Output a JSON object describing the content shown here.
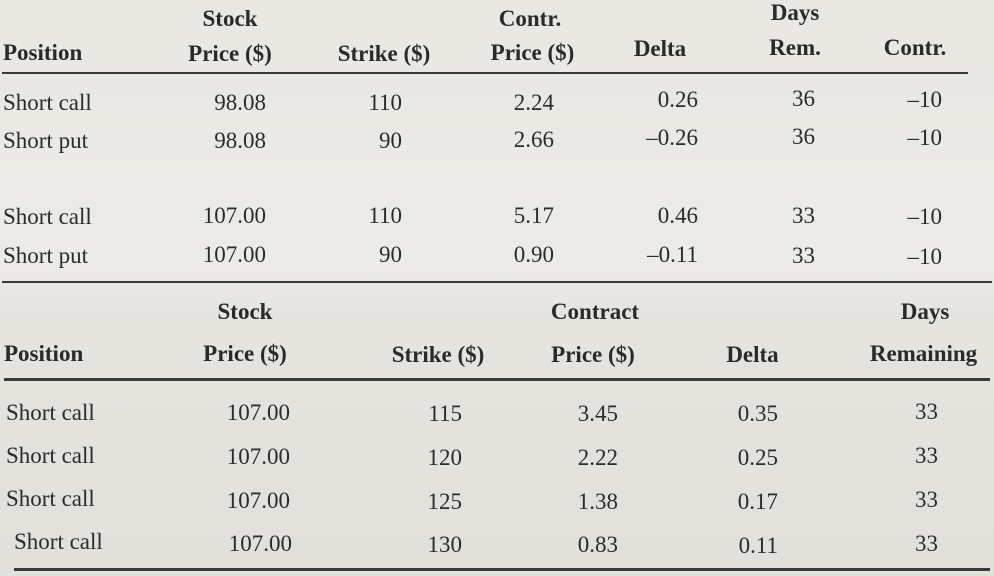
{
  "table1": {
    "headers": {
      "position": "Position",
      "stock_top": "Stock",
      "stock_bottom": "Price ($)",
      "strike": "Strike ($)",
      "contr_top": "Contr.",
      "contr_bottom": "Price ($)",
      "delta": "Delta",
      "days_top": "Days",
      "days_bottom": "Rem.",
      "contracts": "Contr."
    },
    "rows": [
      {
        "position": "Short call",
        "stock": "98.08",
        "strike": "110",
        "price": "2.24",
        "delta": "0.26",
        "days": "36",
        "contracts": "–10"
      },
      {
        "position": "Short put",
        "stock": "98.08",
        "strike": "90",
        "price": "2.66",
        "delta": "–0.26",
        "days": "36",
        "contracts": "–10"
      },
      {
        "position": "Short call",
        "stock": "107.00",
        "strike": "110",
        "price": "5.17",
        "delta": "0.46",
        "days": "33",
        "contracts": "–10"
      },
      {
        "position": "Short put",
        "stock": "107.00",
        "strike": "90",
        "price": "0.90",
        "delta": "–0.11",
        "days": "33",
        "contracts": "–10"
      }
    ]
  },
  "table2": {
    "headers": {
      "position": "Position",
      "stock_top": "Stock",
      "stock_bottom": "Price ($)",
      "strike": "Strike ($)",
      "contract_top": "Contract",
      "contract_bottom": "Price ($)",
      "delta": "Delta",
      "days_top": "Days",
      "days_bottom": "Remaining"
    },
    "rows": [
      {
        "position": "Short call",
        "stock": "107.00",
        "strike": "115",
        "price": "3.45",
        "delta": "0.35",
        "days": "33"
      },
      {
        "position": "Short call",
        "stock": "107.00",
        "strike": "120",
        "price": "2.22",
        "delta": "0.25",
        "days": "33"
      },
      {
        "position": "Short call",
        "stock": "107.00",
        "strike": "125",
        "price": "1.38",
        "delta": "0.17",
        "days": "33"
      },
      {
        "position": "Short call",
        "stock": "107.00",
        "strike": "130",
        "price": "0.83",
        "delta": "0.11",
        "days": "33"
      }
    ]
  }
}
